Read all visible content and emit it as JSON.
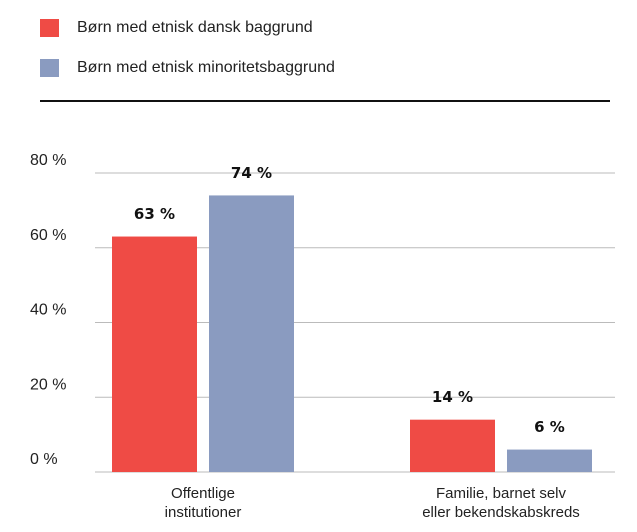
{
  "chart_data": {
    "type": "bar",
    "categories": [
      "Offentlige institutioner",
      "Familie, barnet selv eller bekendskabskreds"
    ],
    "series": [
      {
        "name": "Børn med etnisk dansk baggrund",
        "color": "#ef4b45",
        "values": [
          63,
          14
        ],
        "value_labels": [
          "63 %",
          "14 %"
        ]
      },
      {
        "name": "Børn med etnisk minoritetsbaggrund",
        "color": "#8a9bc0",
        "values": [
          74,
          6
        ],
        "value_labels": [
          "74 %",
          "6 %"
        ]
      }
    ],
    "ylim": [
      0,
      80
    ],
    "yticks": [
      {
        "value": 0,
        "label": "0 %"
      },
      {
        "value": 20,
        "label": "20 %"
      },
      {
        "value": 40,
        "label": "40 %"
      },
      {
        "value": 60,
        "label": "60 %"
      },
      {
        "value": 80,
        "label": "80 %"
      }
    ],
    "grid": true,
    "legend": "top-left"
  }
}
